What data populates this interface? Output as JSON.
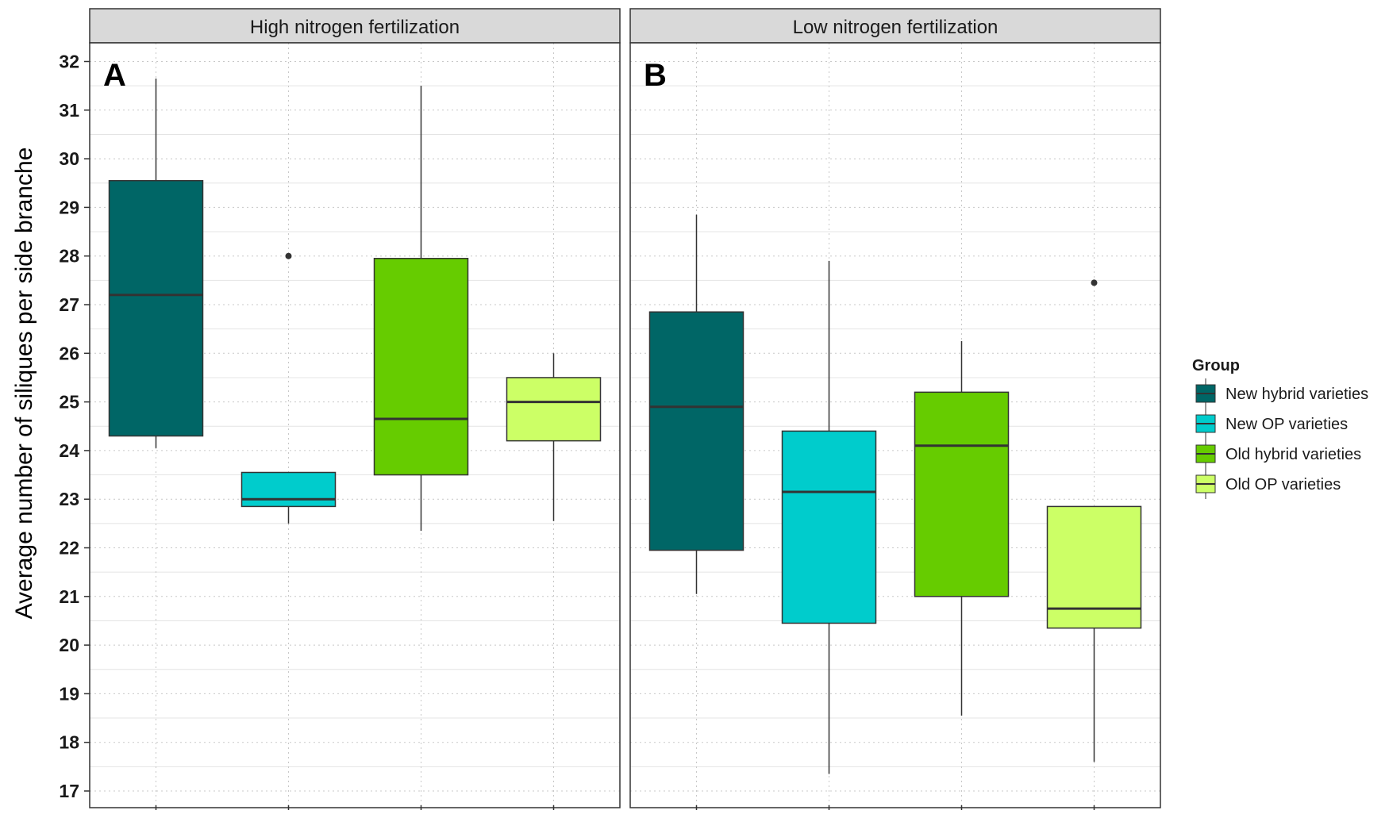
{
  "chart_data": {
    "type": "box",
    "ylabel": "Average number of siliques per side branche",
    "xlabel": "",
    "ylim": [
      17,
      32
    ],
    "yticks": [
      17,
      18,
      19,
      20,
      21,
      22,
      23,
      24,
      25,
      26,
      27,
      28,
      29,
      30,
      31,
      32
    ],
    "grid": true,
    "legend": {
      "title": "Group",
      "position": "right",
      "entries": [
        {
          "label": "New hybrid varieties",
          "color": "#006666"
        },
        {
          "label": "New OP varieties",
          "color": "#00CCCC"
        },
        {
          "label": "Old hybrid varieties",
          "color": "#66CC00"
        },
        {
          "label": "Old OP varieties",
          "color": "#CCFF66"
        }
      ]
    },
    "panels": [
      {
        "strip": "High nitrogen fertilization",
        "letter": "A",
        "boxes": [
          {
            "group": "New hybrid varieties",
            "min": 24.05,
            "q1": 24.3,
            "median": 27.2,
            "q3": 29.55,
            "max": 31.65,
            "outliers": []
          },
          {
            "group": "New OP varieties",
            "min": 22.5,
            "q1": 22.85,
            "median": 23.0,
            "q3": 23.55,
            "max": 23.55,
            "outliers": [
              28.0
            ]
          },
          {
            "group": "Old hybrid varieties",
            "min": 22.35,
            "q1": 23.5,
            "median": 24.65,
            "q3": 27.95,
            "max": 31.5,
            "outliers": []
          },
          {
            "group": "Old OP varieties",
            "min": 22.55,
            "q1": 24.2,
            "median": 25.0,
            "q3": 25.5,
            "max": 26.0,
            "outliers": []
          }
        ]
      },
      {
        "strip": "Low nitrogen fertilization",
        "letter": "B",
        "boxes": [
          {
            "group": "New hybrid varieties",
            "min": 21.05,
            "q1": 21.95,
            "median": 24.9,
            "q3": 26.85,
            "max": 28.85,
            "outliers": []
          },
          {
            "group": "New OP varieties",
            "min": 17.35,
            "q1": 20.45,
            "median": 23.15,
            "q3": 24.4,
            "max": 27.9,
            "outliers": []
          },
          {
            "group": "Old hybrid varieties",
            "min": 18.55,
            "q1": 21.0,
            "median": 24.1,
            "q3": 25.2,
            "max": 26.25,
            "outliers": []
          },
          {
            "group": "Old OP varieties",
            "min": 17.6,
            "q1": 20.35,
            "median": 20.75,
            "q3": 22.85,
            "max": 22.85,
            "outliers": [
              27.45
            ]
          }
        ]
      }
    ]
  }
}
